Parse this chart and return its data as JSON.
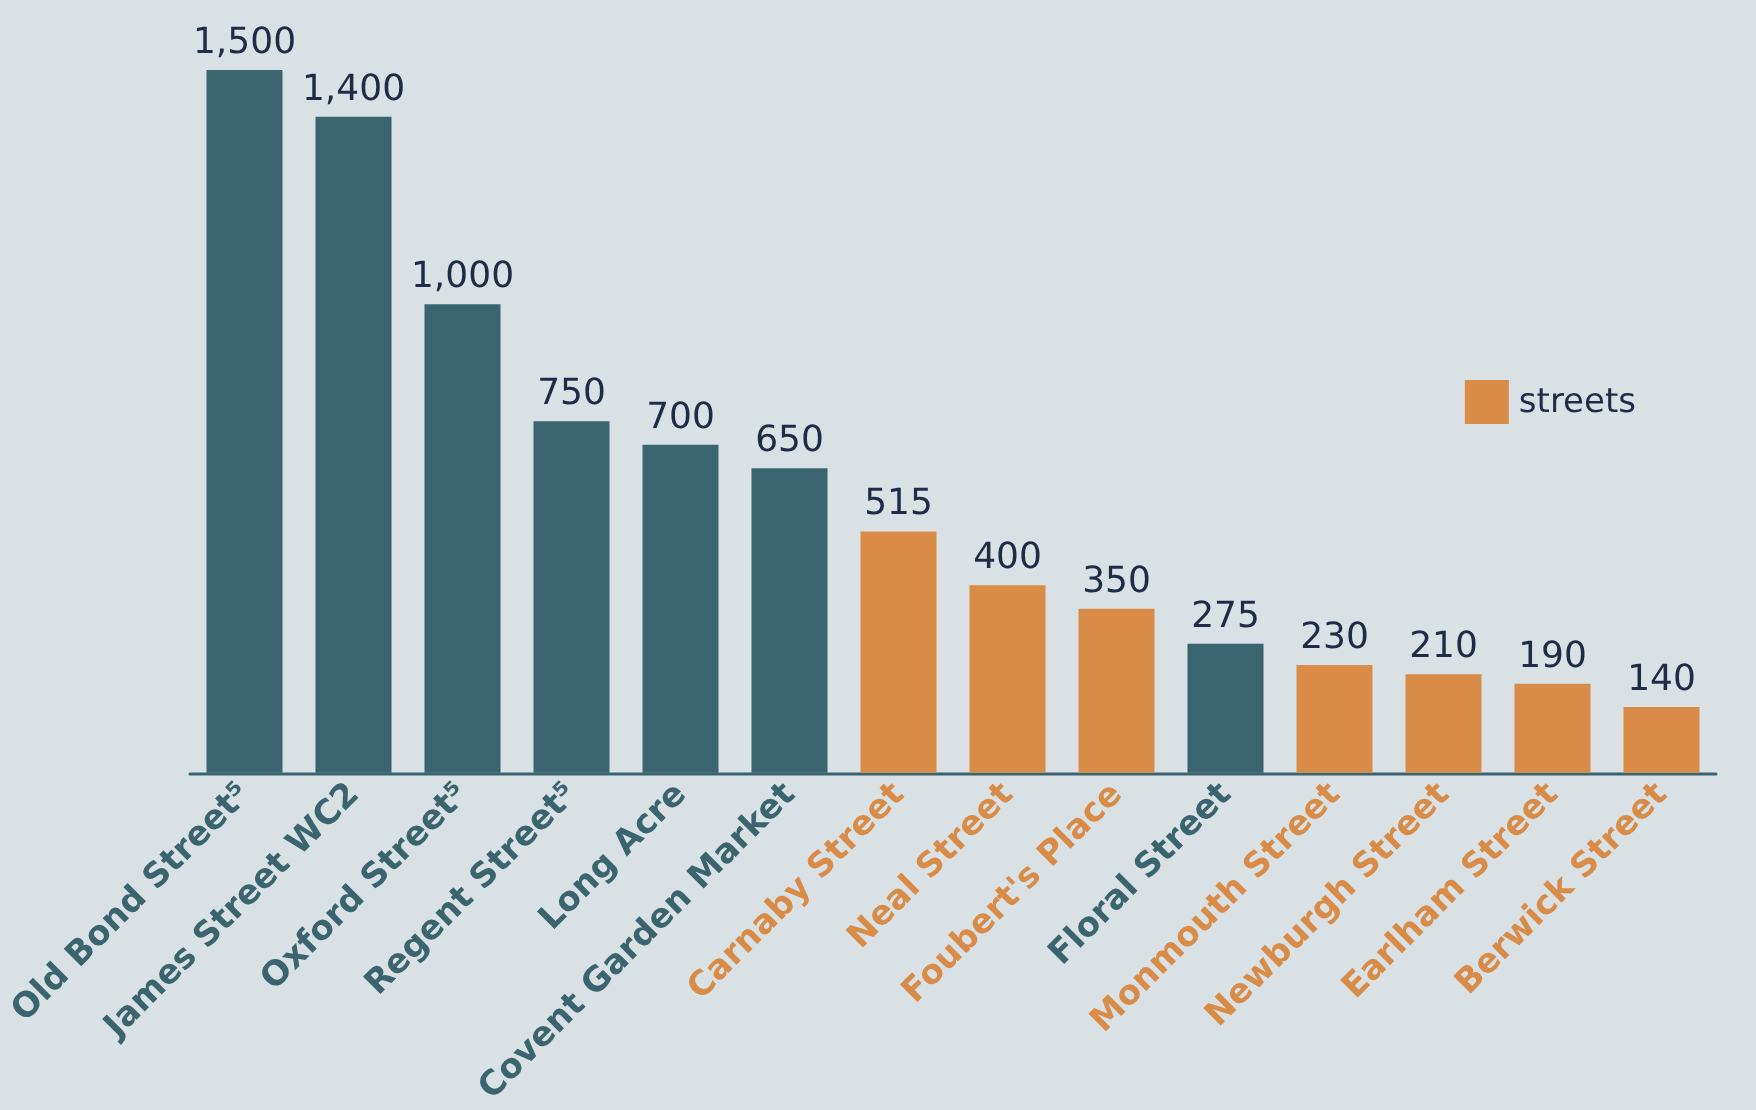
{
  "chart_data": {
    "type": "bar",
    "categories": [
      "Old Bond Street⁵",
      "James Street WC2",
      "Oxford Street⁵",
      "Regent Street⁵",
      "Long Acre",
      "Covent Garden Market",
      "Carnaby Street",
      "Neal Street",
      "Foubert's Place",
      "Floral Street",
      "Monmouth Street",
      "Newburgh Street",
      "Earlham Street",
      "Berwick Street"
    ],
    "series": [
      {
        "color": "#3a656e",
        "values": [
          1500,
          1400,
          1000,
          750,
          700,
          650,
          null,
          null,
          null,
          275,
          null,
          null,
          null,
          null
        ],
        "value_labels": [
          "1,500",
          "1,400",
          "1,000",
          "750",
          "700",
          "650",
          null,
          null,
          null,
          "275",
          null,
          null,
          null,
          null
        ]
      },
      {
        "name": "streets",
        "color": "#d98b48",
        "values": [
          null,
          null,
          null,
          null,
          null,
          null,
          515,
          400,
          350,
          null,
          230,
          210,
          190,
          140
        ],
        "value_labels": [
          null,
          null,
          null,
          null,
          null,
          null,
          "515",
          "400",
          "350",
          null,
          "230",
          "210",
          "190",
          "140"
        ]
      }
    ],
    "legend": "right",
    "tick_labels": "x"
  }
}
